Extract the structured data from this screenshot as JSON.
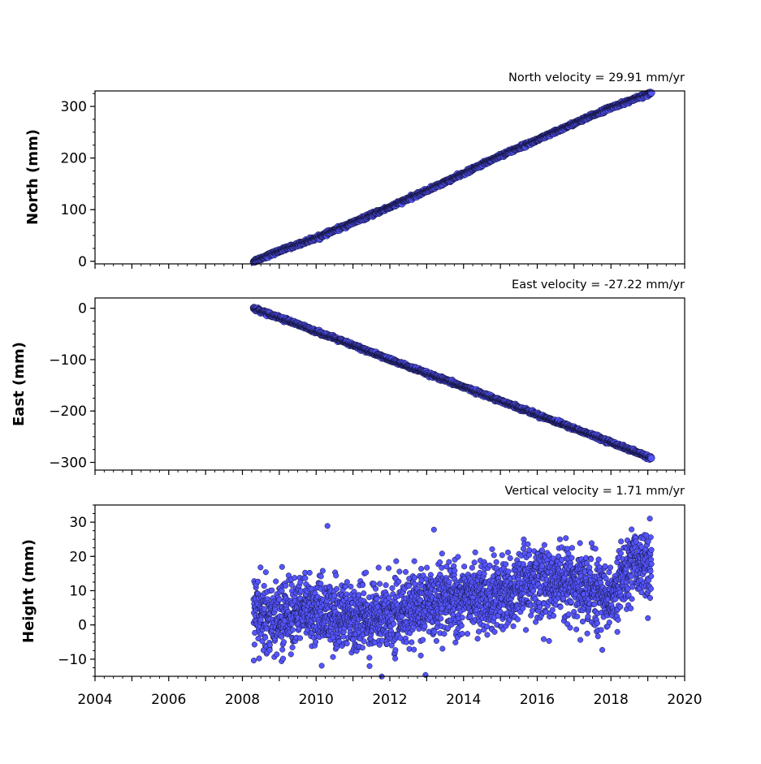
{
  "colors": {
    "marker_fill": "#5555ff",
    "marker_edge": "#111133",
    "axis": "#000000"
  },
  "chart_data": [
    {
      "type": "scatter",
      "title": "North velocity = 29.91 mm/yr",
      "ylabel": "North (mm)",
      "xlim": [
        2004,
        2020
      ],
      "ylim": [
        -5,
        330
      ],
      "yticks": [
        0,
        100,
        200,
        300
      ],
      "ytick_labels": [
        "0",
        "100",
        "200",
        "300"
      ],
      "xtick_labels_visible": false,
      "trend": {
        "start_x": 2008.3,
        "start_y": 0,
        "end_x": 2019.1,
        "end_y": 326,
        "scatter_mm": 1.5
      },
      "x": [
        2008.3,
        2009.0,
        2010.0,
        2011.0,
        2012.0,
        2013.0,
        2014.0,
        2015.0,
        2016.0,
        2017.0,
        2018.0,
        2019.1
      ],
      "y": [
        0,
        20,
        45,
        75,
        105,
        137,
        170,
        205,
        235,
        267,
        298,
        326
      ]
    },
    {
      "type": "scatter",
      "title": "East velocity = -27.22 mm/yr",
      "ylabel": "East (mm)",
      "xlim": [
        2004,
        2020
      ],
      "ylim": [
        -315,
        20
      ],
      "yticks": [
        0,
        -100,
        -200,
        -300
      ],
      "ytick_labels": [
        "0",
        "−100",
        "−200",
        "−300"
      ],
      "xtick_labels_visible": false,
      "trend": {
        "start_x": 2008.3,
        "start_y": 0,
        "end_x": 2019.1,
        "end_y": -292,
        "scatter_mm": 1.5
      },
      "x": [
        2008.3,
        2009.0,
        2010.0,
        2011.0,
        2012.0,
        2013.0,
        2014.0,
        2015.0,
        2016.0,
        2017.0,
        2018.0,
        2019.1
      ],
      "y": [
        0,
        -18,
        -45,
        -72,
        -100,
        -127,
        -153,
        -180,
        -207,
        -234,
        -261,
        -292
      ]
    },
    {
      "type": "scatter",
      "title": "Vertical velocity = 1.71 mm/yr",
      "ylabel": "Height (mm)",
      "xlim": [
        2004,
        2020
      ],
      "ylim": [
        -15,
        35
      ],
      "yticks": [
        -10,
        0,
        10,
        20,
        30
      ],
      "ytick_labels": [
        "−10",
        "0",
        "10",
        "20",
        "30"
      ],
      "xticks": [
        2004,
        2006,
        2008,
        2010,
        2012,
        2014,
        2016,
        2018,
        2020
      ],
      "xtick_labels": [
        "2004",
        "2006",
        "2008",
        "2010",
        "2012",
        "2014",
        "2016",
        "2018",
        "2020"
      ],
      "xtick_labels_visible": true,
      "trend": {
        "start_x": 2008.3,
        "start_y": 3,
        "end_x": 2019.1,
        "end_y": 18,
        "scatter_mm": 5
      },
      "x": [
        2008.3,
        2009.0,
        2010.0,
        2011.0,
        2012.0,
        2013.0,
        2014.0,
        2015.0,
        2016.0,
        2017.0,
        2018.0,
        2018.6,
        2019.1
      ],
      "y": [
        3,
        2,
        4,
        1,
        3,
        6,
        8,
        9,
        13,
        12,
        8,
        20,
        15
      ]
    }
  ]
}
